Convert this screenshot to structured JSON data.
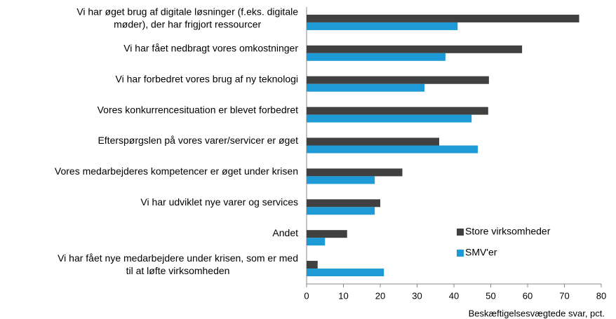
{
  "chart_data": {
    "type": "bar",
    "orientation": "horizontal",
    "categories": [
      [
        "Vi har øget brug af digitale løsninger (f.eks. digitale",
        "møder), der har frigjort ressourcer"
      ],
      [
        "Vi har fået nedbragt vores omkostninger"
      ],
      [
        "Vi har forbedret vores brug af ny teknologi"
      ],
      [
        "Vores konkurrencesituation er blevet forbedret"
      ],
      [
        "Efterspørgslen på vores varer/servicer er øget"
      ],
      [
        "Vores medarbejderes kompetencer er øget under krisen"
      ],
      [
        "Vi har udviklet nye varer og services"
      ],
      [
        "Andet"
      ],
      [
        "Vi har fået nye medarbejdere under krisen, som er med",
        "til at løfte virksomheden"
      ]
    ],
    "series": [
      {
        "name": "Store virksomheder",
        "color": "#404040",
        "values": [
          74,
          58.5,
          49.5,
          49.3,
          36,
          26,
          20,
          11,
          3
        ]
      },
      {
        "name": "SMV'er",
        "color": "#1e9bd7",
        "values": [
          41,
          37.7,
          32,
          44.8,
          46.5,
          18.5,
          18.5,
          5,
          21
        ]
      }
    ],
    "xlim": [
      0,
      80
    ],
    "xticks": [
      0,
      10,
      20,
      30,
      40,
      50,
      60,
      70,
      80
    ],
    "xlabel": "Beskæftigelsesvægtede svar, pct.",
    "legend": "lower right"
  }
}
